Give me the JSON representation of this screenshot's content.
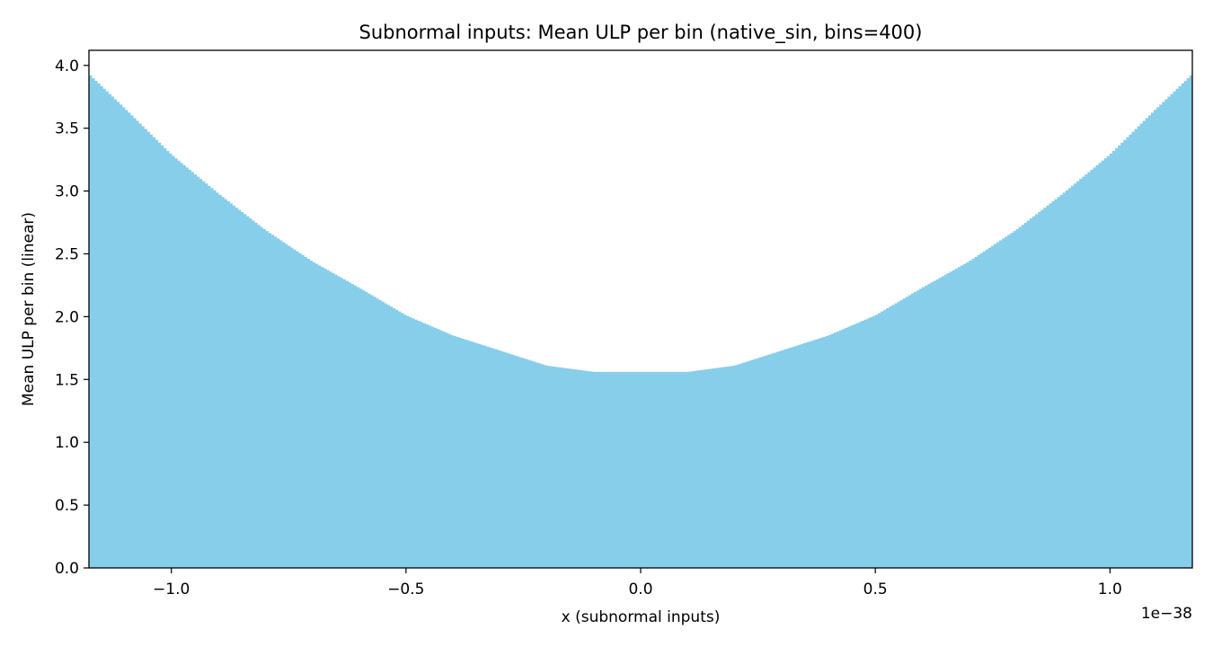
{
  "chart_data": {
    "type": "bar",
    "title": "Subnormal inputs: Mean ULP per bin (native_sin, bins=400)",
    "xlabel": "x (subnormal inputs)",
    "ylabel": "Mean ULP per bin (linear)",
    "x_offset_label": "1e−38",
    "x_unit_scale": 1e-38,
    "xlim": [
      -1.1755,
      1.1755
    ],
    "ylim": [
      0,
      4.12
    ],
    "bins": 400,
    "bar_color": "#87ceeb",
    "grid": false,
    "legend": "none",
    "x_ticks": [
      {
        "value": -1.0,
        "label": "−1.0"
      },
      {
        "value": -0.5,
        "label": "−0.5"
      },
      {
        "value": 0.0,
        "label": "0.0"
      },
      {
        "value": 0.5,
        "label": "0.5"
      },
      {
        "value": 1.0,
        "label": "1.0"
      }
    ],
    "y_ticks": [
      {
        "value": 0.0,
        "label": "0.0"
      },
      {
        "value": 0.5,
        "label": "0.5"
      },
      {
        "value": 1.0,
        "label": "1.0"
      },
      {
        "value": 1.5,
        "label": "1.5"
      },
      {
        "value": 2.0,
        "label": "2.0"
      },
      {
        "value": 2.5,
        "label": "2.5"
      },
      {
        "value": 3.0,
        "label": "3.0"
      },
      {
        "value": 3.5,
        "label": "3.5"
      },
      {
        "value": 4.0,
        "label": "4.0"
      }
    ],
    "profile": {
      "abs_x": [
        0.0,
        0.1,
        0.2,
        0.3,
        0.4,
        0.5,
        0.6,
        0.7,
        0.8,
        0.9,
        1.0,
        1.1,
        1.1755
      ],
      "mean_ulp": [
        1.56,
        1.56,
        1.61,
        1.73,
        1.85,
        2.01,
        2.23,
        2.44,
        2.69,
        2.98,
        3.29,
        3.66,
        3.93
      ]
    }
  }
}
